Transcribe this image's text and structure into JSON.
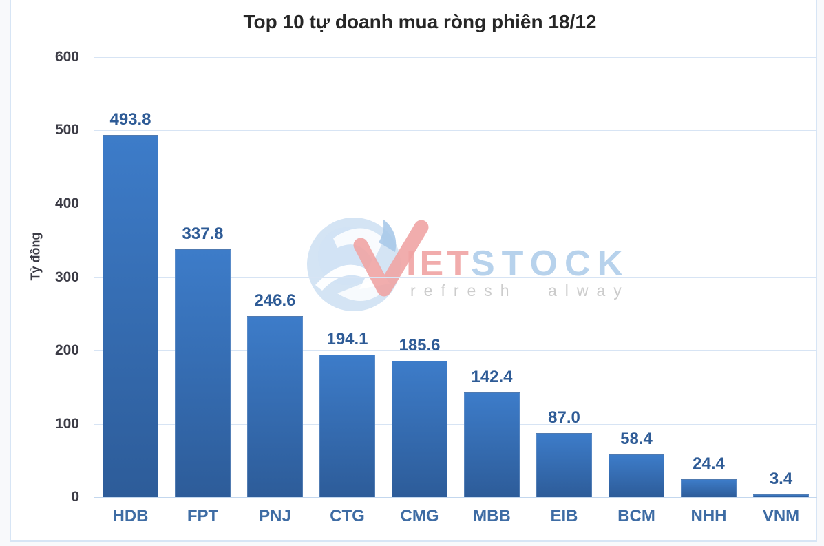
{
  "chart_data": {
    "type": "bar",
    "title": "Top 10 tự doanh mua ròng phiên 18/12",
    "xlabel": "",
    "ylabel": "Tỷ đồng",
    "categories": [
      "HDB",
      "FPT",
      "PNJ",
      "CTG",
      "CMG",
      "MBB",
      "EIB",
      "BCM",
      "NHH",
      "VNM"
    ],
    "values": [
      493.8,
      337.8,
      246.6,
      194.1,
      185.6,
      142.4,
      87.0,
      58.4,
      24.4,
      3.4
    ],
    "value_labels": [
      "493.8",
      "337.8",
      "246.6",
      "194.1",
      "185.6",
      "142.4",
      "87.0",
      "58.4",
      "24.4",
      "3.4"
    ],
    "yticks": [
      600,
      500,
      400,
      300,
      200,
      100,
      0
    ],
    "ylim": [
      0,
      600
    ],
    "grid": "horizontal",
    "legend": "none",
    "bar_color_top": "#3d7cc9",
    "bar_color_bottom": "#2d5c99"
  },
  "watermark": {
    "brand": "VIETSTOCK",
    "brand_red_part": "IET",
    "brand_blue_part": "STOCK",
    "tagline": "refresh always"
  },
  "colors": {
    "gridline": "#d7e4f4",
    "axis_line": "#c3d7ee",
    "value_label": "#2e5b96",
    "category_label": "#3e6ca4",
    "tick_label": "#3c3c46",
    "title": "#262626",
    "frame_border": "#d7e5f5",
    "watermark_red": "#f0a4a4",
    "watermark_blue": "#b7d2ec",
    "watermark_gray": "#cccccc"
  }
}
